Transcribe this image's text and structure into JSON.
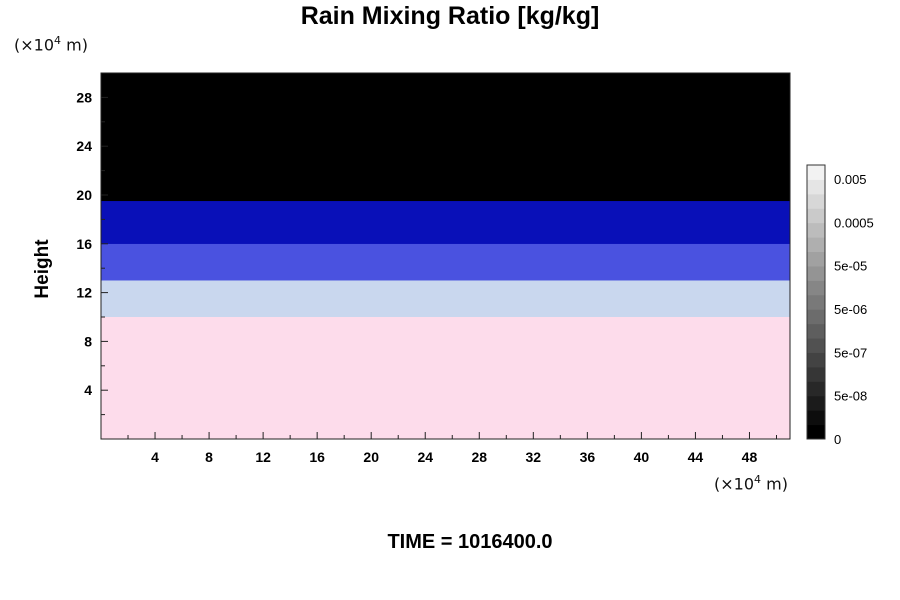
{
  "chart_data": {
    "type": "heatmap",
    "title": "Rain Mixing Ratio [kg/kg]",
    "ylabel": "Height",
    "xlabel": "",
    "y_unit_prefix": "(×10",
    "y_unit_exp": "4",
    "y_unit_suffix": " m)",
    "x_unit_prefix": "(×10",
    "x_unit_exp": "4",
    "x_unit_suffix": " m)",
    "x_ticks": [
      "4",
      "8",
      "12",
      "16",
      "20",
      "24",
      "28",
      "32",
      "36",
      "40",
      "44",
      "48"
    ],
    "y_ticks": [
      "4",
      "8",
      "12",
      "16",
      "20",
      "24",
      "28"
    ],
    "xlim": [
      0,
      51
    ],
    "ylim": [
      0,
      30
    ],
    "layers": [
      {
        "name": "pink",
        "y_from": 0,
        "y_to": 10,
        "color": "#fddcec"
      },
      {
        "name": "pale-blue",
        "y_from": 10,
        "y_to": 13,
        "color": "#c9d7ee"
      },
      {
        "name": "blue",
        "y_from": 13,
        "y_to": 16,
        "color": "#4a52e0"
      },
      {
        "name": "dark-blue",
        "y_from": 16,
        "y_to": 19.5,
        "color": "#0a10b8"
      },
      {
        "name": "black",
        "y_from": 19.5,
        "y_to": 30,
        "color": "#000000"
      }
    ],
    "colorbar": {
      "labels": [
        "0.005",
        "0.0005",
        "5e-05",
        "5e-06",
        "5e-07",
        "5e-08",
        "0"
      ],
      "n_levels": 19,
      "color_low": "#000000",
      "color_high": "#f2f2f2"
    },
    "footer": "TIME = 1016400.0"
  }
}
